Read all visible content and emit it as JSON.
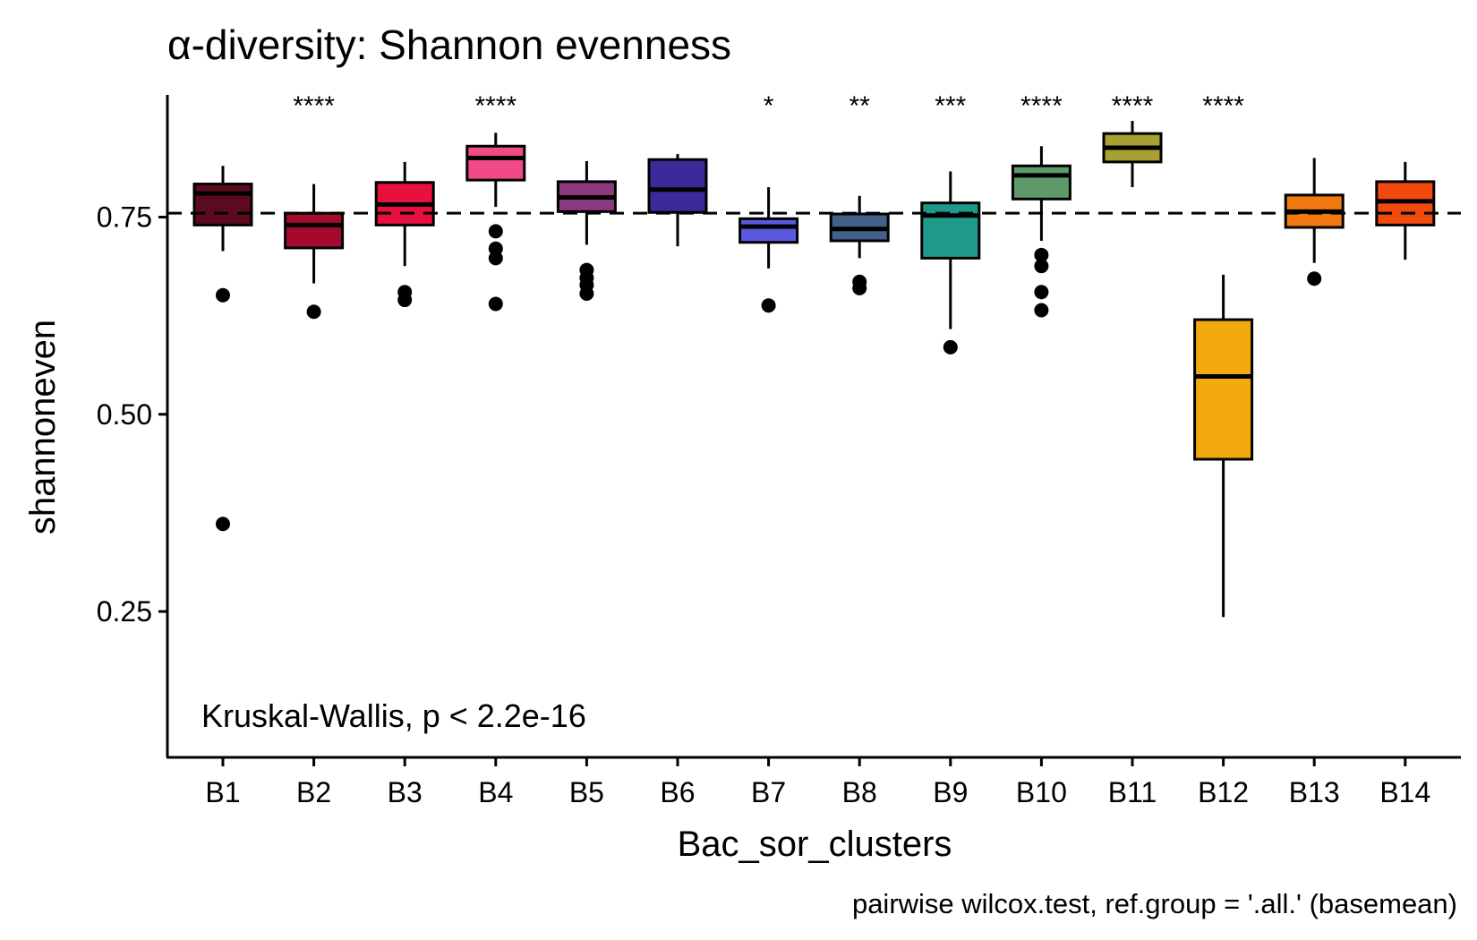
{
  "chart_data": {
    "type": "boxplot",
    "title": "α-diversity: Shannon evenness",
    "xlabel": "Bac_sor_clusters",
    "ylabel": "shannoneven",
    "ylim": [
      0.065,
      0.905
    ],
    "yticks": [
      "0.25",
      "0.50",
      "0.75"
    ],
    "grid": false,
    "legend": "none",
    "reference_line": 0.755,
    "annotation": "Kruskal-Wallis, p < 2.2e-16",
    "caption": "pairwise wilcox.test, ref.group = '.all.' (basemean)",
    "categories": [
      "B1",
      "B2",
      "B3",
      "B4",
      "B5",
      "B6",
      "B7",
      "B8",
      "B9",
      "B10",
      "B11",
      "B12",
      "B13",
      "B14"
    ],
    "boxes": [
      {
        "name": "B1",
        "color": "#5c0a1e",
        "whisker_low": 0.707,
        "q1": 0.74,
        "median": 0.78,
        "q3": 0.792,
        "whisker_high": 0.815,
        "outliers": [
          0.651,
          0.361
        ],
        "significance": ""
      },
      {
        "name": "B2",
        "color": "#a30a2e",
        "whisker_low": 0.666,
        "q1": 0.711,
        "median": 0.74,
        "q3": 0.755,
        "whisker_high": 0.792,
        "outliers": [
          0.63
        ],
        "significance": "****"
      },
      {
        "name": "B3",
        "color": "#e8103f",
        "whisker_low": 0.688,
        "q1": 0.74,
        "median": 0.766,
        "q3": 0.794,
        "whisker_high": 0.82,
        "outliers": [
          0.655,
          0.645
        ],
        "significance": ""
      },
      {
        "name": "B4",
        "color": "#f24a86",
        "whisker_low": 0.763,
        "q1": 0.797,
        "median": 0.825,
        "q3": 0.84,
        "whisker_high": 0.857,
        "outliers": [
          0.732,
          0.71,
          0.698,
          0.64
        ],
        "significance": "****"
      },
      {
        "name": "B5",
        "color": "#8a3a7e",
        "whisker_low": 0.715,
        "q1": 0.757,
        "median": 0.775,
        "q3": 0.795,
        "whisker_high": 0.821,
        "outliers": [
          0.683,
          0.673,
          0.664,
          0.653
        ],
        "significance": ""
      },
      {
        "name": "B6",
        "color": "#3a2a9a",
        "whisker_low": 0.713,
        "q1": 0.756,
        "median": 0.785,
        "q3": 0.823,
        "whisker_high": 0.83,
        "outliers": [],
        "significance": ""
      },
      {
        "name": "B7",
        "color": "#5a5ae0",
        "whisker_low": 0.685,
        "q1": 0.718,
        "median": 0.738,
        "q3": 0.748,
        "whisker_high": 0.788,
        "outliers": [
          0.638
        ],
        "significance": "*"
      },
      {
        "name": "B8",
        "color": "#44608a",
        "whisker_low": 0.698,
        "q1": 0.72,
        "median": 0.735,
        "q3": 0.754,
        "whisker_high": 0.777,
        "outliers": [
          0.668,
          0.66
        ],
        "significance": "**"
      },
      {
        "name": "B9",
        "color": "#1f9a8a",
        "whisker_low": 0.608,
        "q1": 0.698,
        "median": 0.752,
        "q3": 0.768,
        "whisker_high": 0.808,
        "outliers": [
          0.585
        ],
        "significance": "***"
      },
      {
        "name": "B10",
        "color": "#5e9a6a",
        "whisker_low": 0.72,
        "q1": 0.773,
        "median": 0.803,
        "q3": 0.815,
        "whisker_high": 0.84,
        "outliers": [
          0.702,
          0.688,
          0.655,
          0.632
        ],
        "significance": "****"
      },
      {
        "name": "B11",
        "color": "#a8a030",
        "whisker_low": 0.788,
        "q1": 0.82,
        "median": 0.838,
        "q3": 0.856,
        "whisker_high": 0.872,
        "outliers": [],
        "significance": "****"
      },
      {
        "name": "B12",
        "color": "#f2aa0e",
        "whisker_low": 0.243,
        "q1": 0.443,
        "median": 0.548,
        "q3": 0.62,
        "whisker_high": 0.677,
        "outliers": [],
        "significance": "****"
      },
      {
        "name": "B13",
        "color": "#f07a10",
        "whisker_low": 0.692,
        "q1": 0.737,
        "median": 0.757,
        "q3": 0.778,
        "whisker_high": 0.825,
        "outliers": [
          0.672
        ],
        "significance": ""
      },
      {
        "name": "B14",
        "color": "#f24a0e",
        "whisker_low": 0.696,
        "q1": 0.74,
        "median": 0.77,
        "q3": 0.795,
        "whisker_high": 0.82,
        "outliers": [],
        "significance": ""
      }
    ]
  }
}
